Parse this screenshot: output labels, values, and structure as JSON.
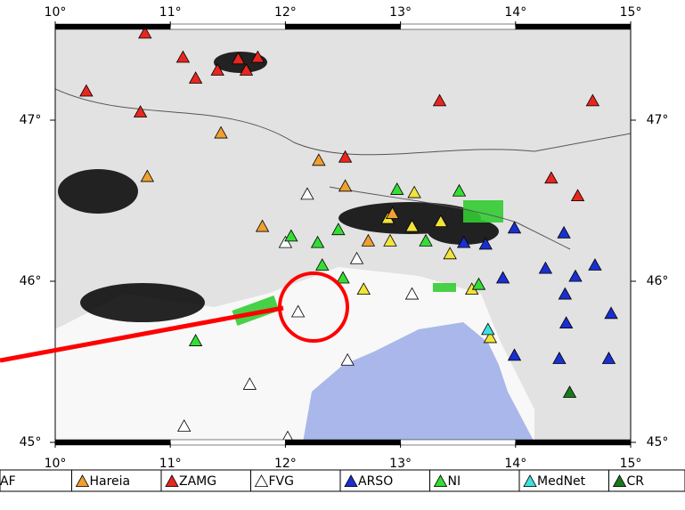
{
  "chart_data": {
    "type": "map",
    "xlim": [
      10,
      15
    ],
    "ylim": [
      45,
      47.58
    ],
    "xticks": [
      {
        "value": 10,
        "label": "10°"
      },
      {
        "value": 11,
        "label": "11°"
      },
      {
        "value": 12,
        "label": "12°"
      },
      {
        "value": 13,
        "label": "13°"
      },
      {
        "value": 14,
        "label": "14°"
      },
      {
        "value": 15,
        "label": "15°"
      }
    ],
    "yticks": [
      {
        "value": 45,
        "label": "45°"
      },
      {
        "value": 46,
        "label": "46°"
      },
      {
        "value": 47,
        "label": "47°"
      }
    ],
    "series": [
      {
        "name": "AF",
        "color": "#f2e43a",
        "x": [
          13.12,
          12.89,
          13.1,
          13.35,
          12.68,
          13.62,
          13.43,
          13.78,
          12.91
        ],
        "y": [
          46.55,
          46.39,
          46.34,
          46.37,
          45.95,
          45.95,
          46.17,
          45.65,
          46.25
        ]
      },
      {
        "name": "Hareia",
        "color": "#f0a030",
        "x": [
          10.8,
          11.8,
          12.52,
          12.72,
          12.93,
          11.44,
          12.29
        ],
        "y": [
          46.65,
          46.34,
          46.59,
          46.25,
          46.42,
          46.92,
          46.75
        ]
      },
      {
        "name": "ZAMG",
        "color": "#e8261e",
        "x": [
          10.78,
          11.11,
          11.22,
          11.41,
          11.59,
          11.66,
          11.76,
          10.27,
          10.74,
          13.34,
          14.67,
          12.52,
          14.31,
          14.54
        ],
        "y": [
          47.54,
          47.39,
          47.26,
          47.31,
          47.38,
          47.31,
          47.39,
          47.18,
          47.05,
          47.12,
          47.12,
          46.77,
          46.64,
          46.53
        ]
      },
      {
        "name": "FVG",
        "color": "#ffffff",
        "x": [
          12.19,
          12.0,
          12.11,
          13.1,
          12.54,
          11.69,
          11.12,
          12.02,
          12.62
        ],
        "y": [
          46.54,
          46.24,
          45.81,
          45.92,
          45.51,
          45.36,
          45.1,
          45.03,
          46.14
        ]
      },
      {
        "name": "ARSO",
        "color": "#1a2fd0",
        "x": [
          13.99,
          14.42,
          14.26,
          14.69,
          14.52,
          14.43,
          14.83,
          14.44,
          13.99,
          14.38,
          14.81,
          13.55,
          13.74,
          13.89
        ],
        "y": [
          46.33,
          46.3,
          46.08,
          46.1,
          46.03,
          45.92,
          45.8,
          45.74,
          45.54,
          45.52,
          45.52,
          46.24,
          46.23,
          46.02
        ]
      },
      {
        "name": "NI",
        "color": "#33dd33",
        "x": [
          12.97,
          13.51,
          12.46,
          12.05,
          12.28,
          12.32,
          12.5,
          13.68,
          11.22,
          13.22
        ],
        "y": [
          46.57,
          46.56,
          46.32,
          46.28,
          46.24,
          46.1,
          46.02,
          45.98,
          45.63,
          46.25
        ]
      },
      {
        "name": "MedNet",
        "color": "#40e0e0",
        "x": [
          13.76
        ],
        "y": [
          45.7
        ]
      },
      {
        "name": "CR",
        "color": "#1a7a1a",
        "x": [
          14.47
        ],
        "y": [
          45.31
        ]
      }
    ]
  }
}
